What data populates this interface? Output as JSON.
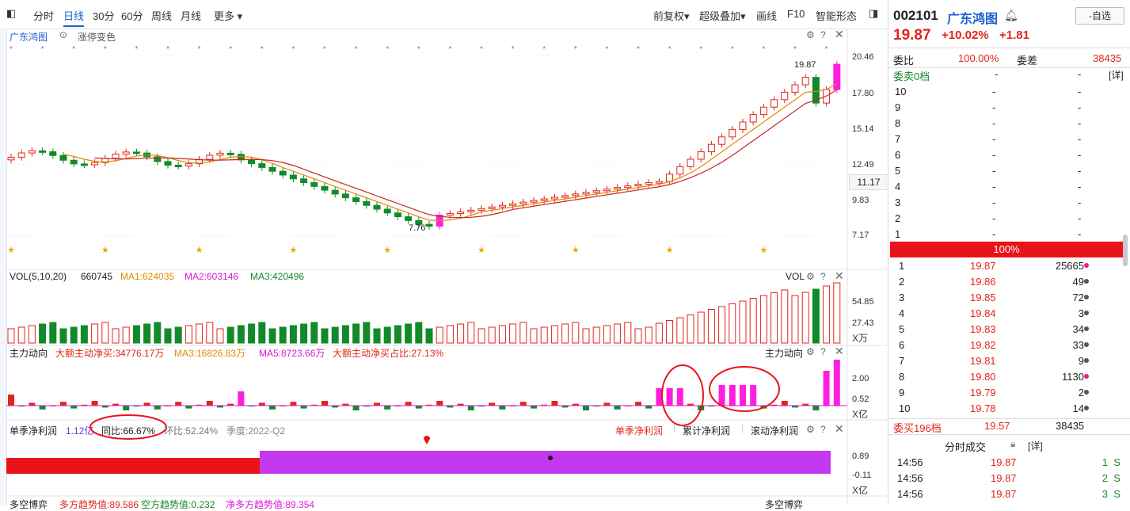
{
  "toolbar": {
    "intraday": "分时",
    "daily": "日线",
    "m30": "30分",
    "m60": "60分",
    "weekly": "周线",
    "monthly": "月线",
    "more": "更多 ▾",
    "pre_adjust": "前复权▾",
    "overlay": "超级叠加▾",
    "draw": "画线",
    "f10": "F10",
    "pattern": "智能形态"
  },
  "kline": {
    "stock_label": "广东鸿图",
    "limit_color": "涨停变色",
    "yticks": [
      "20.46",
      "17.80",
      "15.14",
      "12.49",
      "9.83",
      "7.17"
    ],
    "current_tag": "11.17",
    "high_label": "19.87",
    "low_label": "7.76"
  },
  "vol": {
    "label": "VOL(5,10,20)",
    "value": "660745",
    "ma1": "MA1:624035",
    "ma2": "MA2:603146",
    "ma3": "MA3:420496",
    "name": "VOL",
    "yticks": [
      "54.85",
      "27.43"
    ],
    "unit": "X万"
  },
  "flow": {
    "label": "主力动向",
    "net_buy": "大额主动净买:34776.17万",
    "ma3": "MA3:16826.83万",
    "ma5": "MA5:8723.66万",
    "ratio": "大额主动净买占比:27.13%",
    "name": "主力动向",
    "yticks": [
      "2.00",
      "0.52"
    ],
    "unit": "X亿"
  },
  "profit": {
    "label": "单季净利润",
    "value": "1.12亿",
    "yoy": "同比:66.67%",
    "qoq": "环比:52.24%",
    "quarter": "季度:2022-Q2",
    "tab1": "单季净利润",
    "tab2": "累计净利润",
    "tab3": "滚动净利润",
    "yticks": [
      "0.89",
      "-0.11"
    ],
    "unit": "X亿"
  },
  "bottom": {
    "label": "多空博弈",
    "long": "多方趋势值:89.586",
    "short": "空方趋势值:0.232",
    "net": "净多方趋势值:89.354",
    "name": "多空博弈"
  },
  "quote": {
    "code": "002101",
    "name": "广东鸿图",
    "select_btn": "-自选",
    "price": "19.87",
    "pct": "+10.02%",
    "chg": "+1.81",
    "weibi_label": "委比",
    "weibi": "100.00%",
    "weicha_label": "委差",
    "weicha": "38435",
    "sell_title": "委卖0档",
    "sell_dash1": "-",
    "sell_dash2": "-",
    "detail": "[详]",
    "sells": [
      {
        "lvl": "10",
        "p": "-",
        "v": "-"
      },
      {
        "lvl": "9",
        "p": "-",
        "v": "-"
      },
      {
        "lvl": "8",
        "p": "-",
        "v": "-"
      },
      {
        "lvl": "7",
        "p": "-",
        "v": "-"
      },
      {
        "lvl": "6",
        "p": "-",
        "v": "-"
      },
      {
        "lvl": "5",
        "p": "-",
        "v": "-"
      },
      {
        "lvl": "4",
        "p": "-",
        "v": "-"
      },
      {
        "lvl": "3",
        "p": "-",
        "v": "-"
      },
      {
        "lvl": "2",
        "p": "-",
        "v": "-"
      },
      {
        "lvl": "1",
        "p": "-",
        "v": "-"
      }
    ],
    "bar_pct": "100%",
    "buys": [
      {
        "lvl": "1",
        "p": "19.87",
        "v": "25665",
        "dot": "#e91e8c"
      },
      {
        "lvl": "2",
        "p": "19.86",
        "v": "49",
        "dot": "#555555"
      },
      {
        "lvl": "3",
        "p": "19.85",
        "v": "72",
        "dot": "#555555"
      },
      {
        "lvl": "4",
        "p": "19.84",
        "v": "3",
        "dot": "#555555"
      },
      {
        "lvl": "5",
        "p": "19.83",
        "v": "34",
        "dot": "#555555"
      },
      {
        "lvl": "6",
        "p": "19.82",
        "v": "33",
        "dot": "#555555"
      },
      {
        "lvl": "7",
        "p": "19.81",
        "v": "9",
        "dot": "#555555"
      },
      {
        "lvl": "8",
        "p": "19.80",
        "v": "1130",
        "dot": "#e91e8c"
      },
      {
        "lvl": "9",
        "p": "19.79",
        "v": "2",
        "dot": "#555555"
      },
      {
        "lvl": "10",
        "p": "19.78",
        "v": "14",
        "dot": "#555555"
      }
    ],
    "buy_title": "委买196档",
    "buy_price": "19.57",
    "buy_vol": "38435",
    "trades_title": "分时成交",
    "trades_detail": "[详]",
    "trades": [
      {
        "t": "14:56",
        "p": "19.87",
        "v": "1",
        "s": "S"
      },
      {
        "t": "14:56",
        "p": "19.87",
        "v": "2",
        "s": "S"
      },
      {
        "t": "14:56",
        "p": "19.87",
        "v": "3",
        "s": "S"
      }
    ]
  },
  "colors": {
    "up": "#e1251b",
    "down": "#128a2a",
    "limit": "#ff1ee0",
    "ma_orange": "#e08a00",
    "ma_red": "#c62828",
    "ma_magenta": "#d61ad6"
  }
}
